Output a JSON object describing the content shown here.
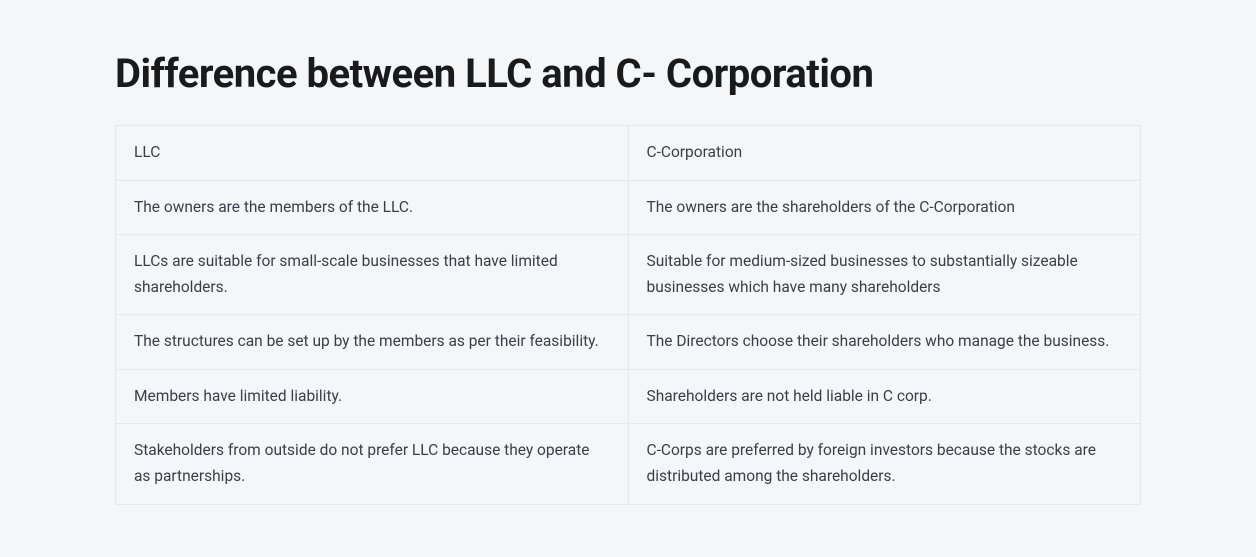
{
  "page": {
    "title": "Difference between LLC and C- Corporation",
    "background_color": "#f5f6f8",
    "title_color": "#1a1a1a",
    "title_fontsize": 40,
    "title_fontweight": 700
  },
  "table": {
    "type": "table",
    "border_color": "#e6e7ea",
    "cell_text_color": "#3a3f47",
    "cell_fontsize": 15.5,
    "columns": [
      "LLC",
      "C-Corporation"
    ],
    "column_widths": [
      "50%",
      "50%"
    ],
    "rows": [
      [
        "The owners are the members of the LLC.",
        "The owners are the shareholders of the C-Corporation"
      ],
      [
        "LLCs are suitable for small-scale businesses that have limited shareholders.",
        "Suitable for medium-sized businesses to substantially sizeable businesses which have many shareholders"
      ],
      [
        "The structures can be set up by the members as per their feasibility.",
        "The Directors choose their shareholders who manage the business."
      ],
      [
        "Members have limited liability.",
        "Shareholders are not held liable in C corp."
      ],
      [
        "Stakeholders from outside do not prefer LLC because they operate as partnerships.",
        "C-Corps are preferred by foreign investors because the stocks are distributed among the shareholders."
      ]
    ]
  }
}
